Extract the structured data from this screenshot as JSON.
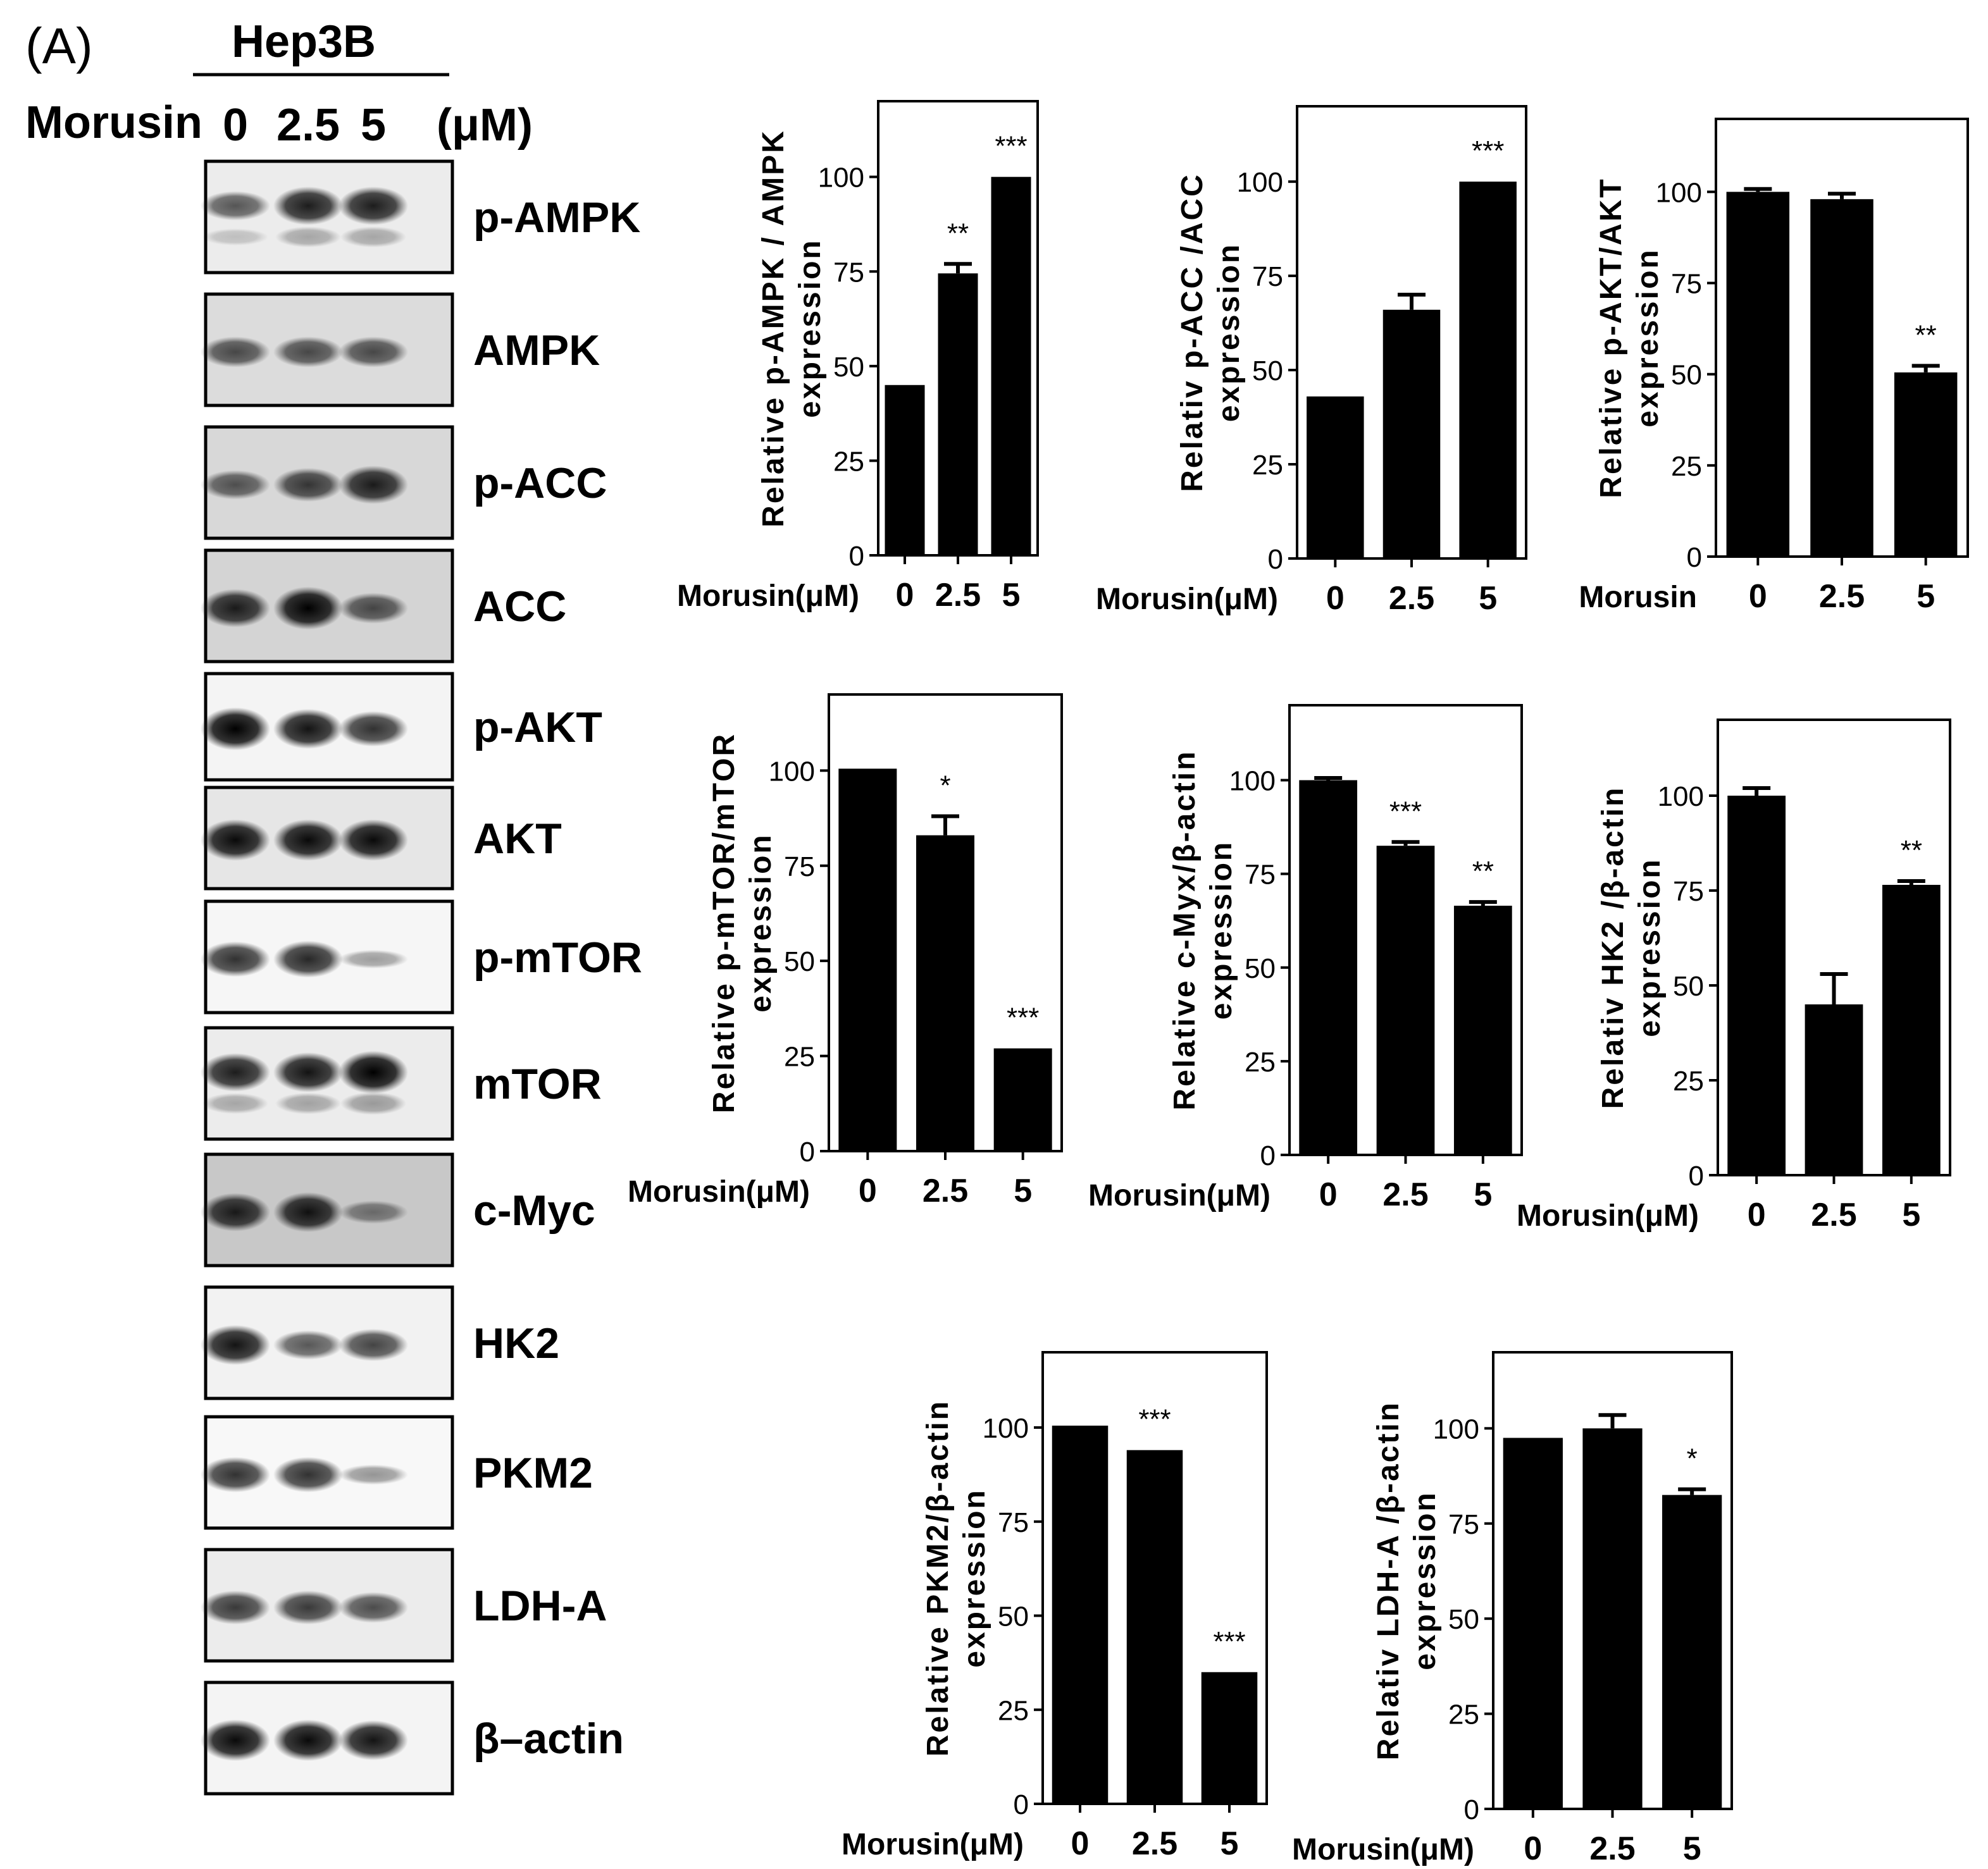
{
  "panel_label": "(A)",
  "cell_line": "Hep3B",
  "blot_treatment_label": "Morusin",
  "blot_doses": [
    "0",
    "2.5",
    "5"
  ],
  "blot_unit": "(μM)",
  "blots": [
    {
      "name": "p-AMPK",
      "bands": [
        0.55,
        0.85,
        0.85
      ],
      "double": true,
      "bg": "#ececec"
    },
    {
      "name": "AMPK",
      "bands": [
        0.6,
        0.6,
        0.6
      ],
      "double": false,
      "bg": "#dcdcdc"
    },
    {
      "name": "p-ACC",
      "bands": [
        0.55,
        0.7,
        0.85
      ],
      "double": false,
      "bg": "#d8d8d8"
    },
    {
      "name": "ACC",
      "bands": [
        0.85,
        1.0,
        0.6
      ],
      "double": false,
      "bg": "#d4d4d4"
    },
    {
      "name": "p-AKT",
      "bands": [
        1.0,
        0.9,
        0.75
      ],
      "double": false,
      "bg": "#f4f4f4"
    },
    {
      "name": "AKT",
      "bands": [
        0.95,
        0.95,
        0.95
      ],
      "double": false,
      "bg": "#e6e6e6"
    },
    {
      "name": "p-mTOR",
      "bands": [
        0.75,
        0.8,
        0.2
      ],
      "double": false,
      "bg": "#f6f6f6"
    },
    {
      "name": "mTOR",
      "bands": [
        0.85,
        0.9,
        1.0
      ],
      "double": true,
      "bg": "#ececec"
    },
    {
      "name": "c-Myc",
      "bands": [
        0.85,
        0.9,
        0.35
      ],
      "double": false,
      "bg": "#c8c8c8"
    },
    {
      "name": "HK2",
      "bands": [
        0.9,
        0.55,
        0.65
      ],
      "double": false,
      "bg": "#f2f2f2"
    },
    {
      "name": "PKM2",
      "bands": [
        0.75,
        0.75,
        0.25
      ],
      "double": false,
      "bg": "#f8f8f8"
    },
    {
      "name": "LDH-A",
      "bands": [
        0.7,
        0.7,
        0.6
      ],
      "double": false,
      "bg": "#ececec"
    },
    {
      "name": "β–actin",
      "bands": [
        0.95,
        0.95,
        0.9
      ],
      "double": false,
      "bg": "#f4f4f4"
    }
  ],
  "chart_data": [
    {
      "type": "bar",
      "ylabel": [
        "Relative p-AMPK / AMPK",
        "expression"
      ],
      "xlabel": "Morusin(μM)",
      "categories": [
        "0",
        "2.5",
        "5"
      ],
      "values": [
        45,
        74.5,
        100
      ],
      "errors": [
        0,
        2.5,
        0
      ],
      "significance": [
        "",
        "**",
        "***"
      ],
      "ylim": [
        0,
        120
      ],
      "yticks": [
        0,
        25,
        50,
        75,
        100
      ]
    },
    {
      "type": "bar",
      "ylabel": [
        "Relativ p-ACC /ACC",
        "expression"
      ],
      "xlabel": "Morusin(μM)",
      "categories": [
        "0",
        "2.5",
        "5"
      ],
      "values": [
        43,
        66,
        100
      ],
      "errors": [
        0,
        4,
        0
      ],
      "significance": [
        "",
        "",
        "***"
      ],
      "ylim": [
        0,
        120
      ],
      "yticks": [
        0,
        25,
        50,
        75,
        100
      ]
    },
    {
      "type": "bar",
      "ylabel": [
        "Relative p-AKT/AKT",
        "expression"
      ],
      "xlabel": "Morusin",
      "categories": [
        "0",
        "2.5",
        "5"
      ],
      "values": [
        100,
        98,
        50.5
      ],
      "errors": [
        0.8,
        1.5,
        1.8
      ],
      "significance": [
        "",
        "",
        "**"
      ],
      "ylim": [
        0,
        120
      ],
      "yticks": [
        0,
        25,
        50,
        75,
        100
      ]
    },
    {
      "type": "bar",
      "ylabel": [
        "Relative p-mTOR/mTOR",
        "expression"
      ],
      "xlabel": "Morusin(μM)",
      "categories": [
        "0",
        "2.5",
        "5"
      ],
      "values": [
        100.5,
        83,
        27
      ],
      "errors": [
        0,
        5,
        0
      ],
      "significance": [
        "",
        "*",
        "***"
      ],
      "ylim": [
        0,
        120
      ],
      "yticks": [
        0,
        25,
        50,
        75,
        100
      ]
    },
    {
      "type": "bar",
      "ylabel": [
        "Relative c-Myx/β-actin",
        "expression"
      ],
      "xlabel": "Morusin(μM)",
      "categories": [
        "0",
        "2.5",
        "5"
      ],
      "values": [
        100,
        82.5,
        66.5
      ],
      "errors": [
        0.6,
        1,
        1
      ],
      "significance": [
        "",
        "***",
        "**"
      ],
      "ylim": [
        0,
        120
      ],
      "yticks": [
        0,
        25,
        50,
        75,
        100
      ]
    },
    {
      "type": "bar",
      "ylabel": [
        "Relativ HK2 /β-actin",
        "expression"
      ],
      "xlabel": "Morusin(μM)",
      "categories": [
        "0",
        "2.5",
        "5"
      ],
      "values": [
        100,
        45,
        76.5
      ],
      "errors": [
        2,
        8,
        1
      ],
      "significance": [
        "",
        "",
        "**"
      ],
      "ylim": [
        0,
        120
      ],
      "yticks": [
        0,
        25,
        50,
        75,
        100
      ]
    },
    {
      "type": "bar",
      "ylabel": [
        "Relative PKM2/β-actin",
        "expression"
      ],
      "xlabel": "Morusin(μM)",
      "categories": [
        "0",
        "2.5",
        "5"
      ],
      "values": [
        100.5,
        94,
        35
      ],
      "errors": [
        0,
        0,
        0
      ],
      "significance": [
        "",
        "***",
        "***"
      ],
      "ylim": [
        0,
        120
      ],
      "yticks": [
        0,
        25,
        50,
        75,
        100
      ]
    },
    {
      "type": "bar",
      "ylabel": [
        "Relativ LDH-A /β-actin",
        "expression"
      ],
      "xlabel": "Morusin(μM)",
      "categories": [
        "0",
        "2.5",
        "5"
      ],
      "values": [
        97.5,
        100,
        82.5
      ],
      "errors": [
        0,
        3.5,
        1.5
      ],
      "significance": [
        "",
        "",
        "*"
      ],
      "ylim": [
        0,
        120
      ],
      "yticks": [
        0,
        25,
        50,
        75,
        100
      ]
    }
  ]
}
